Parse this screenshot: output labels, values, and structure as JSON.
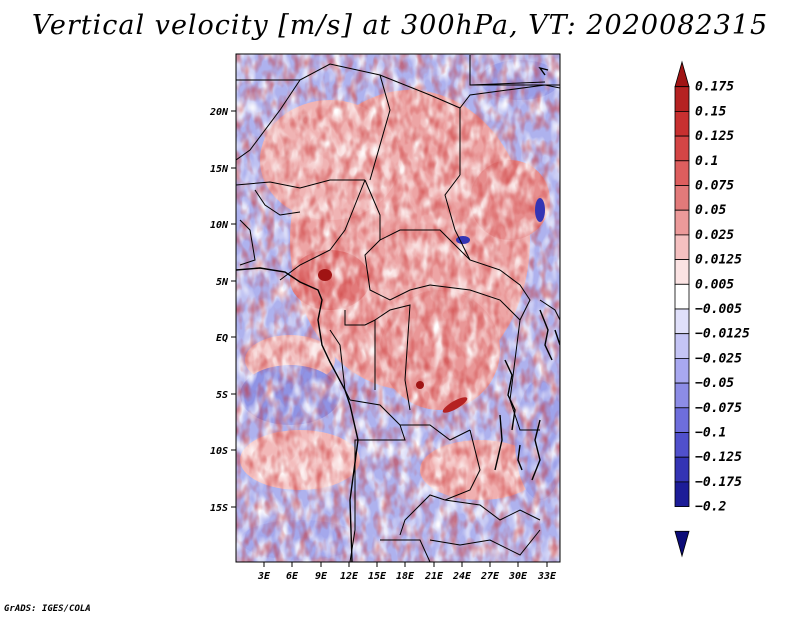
{
  "title": "Vertical velocity [m/s] at 300hPa, VT: 2020082315",
  "credit": "GrADS: IGES/COLA",
  "lat_ticks": [
    "20N",
    "15N",
    "10N",
    "5N",
    "EQ",
    "5S",
    "10S",
    "15S"
  ],
  "lon_ticks": [
    "3E",
    "6E",
    "9E",
    "12E",
    "15E",
    "18E",
    "21E",
    "24E",
    "27E",
    "30E",
    "33E"
  ],
  "colorbar": {
    "levels": [
      "0.175",
      "0.15",
      "0.125",
      "0.1",
      "0.075",
      "0.05",
      "0.025",
      "0.0125",
      "0.005",
      "−0.005",
      "−0.0125",
      "−0.025",
      "−0.05",
      "−0.075",
      "−0.1",
      "−0.125",
      "−0.175",
      "−0.2"
    ],
    "colors": [
      "#a01414",
      "#b52222",
      "#c83030",
      "#d44545",
      "#dd5e5e",
      "#e27a7a",
      "#ec9a9a",
      "#f5c0c0",
      "#fbe3e3",
      "#ffffff",
      "#e0e0fa",
      "#c4c4f5",
      "#a8a8f0",
      "#8c8ce6",
      "#6e6edc",
      "#5050cc",
      "#3434b4",
      "#1c1c98",
      "#0c0c78"
    ]
  }
}
